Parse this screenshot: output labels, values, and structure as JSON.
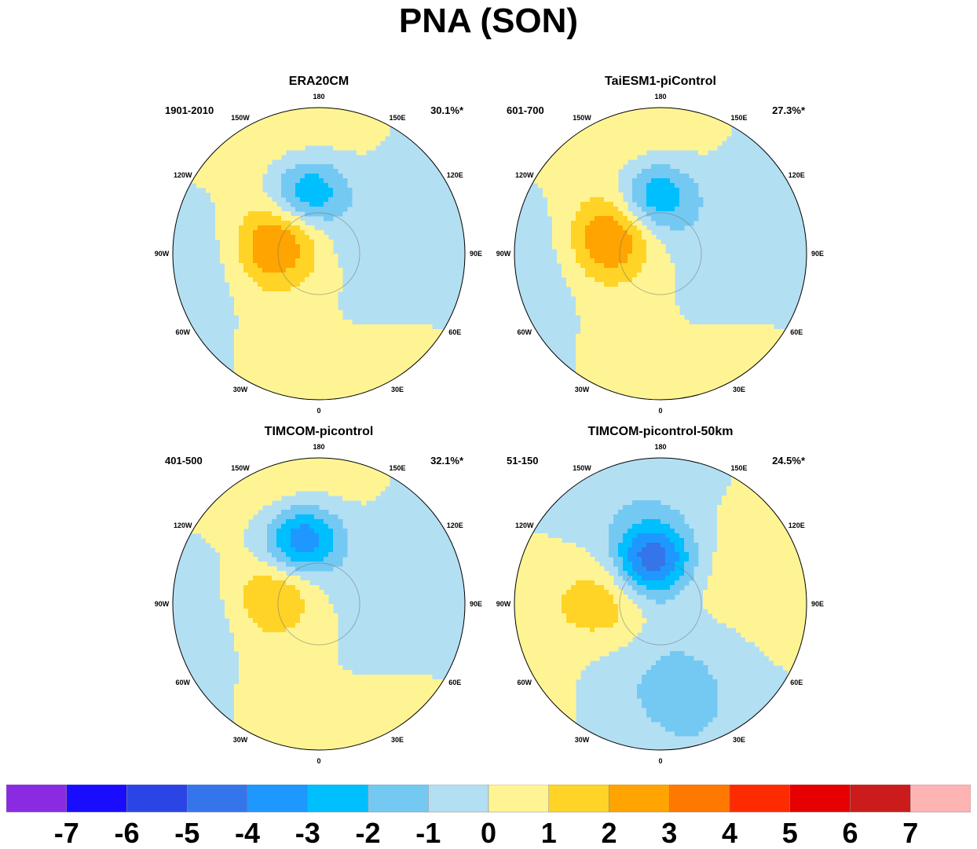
{
  "title": "PNA (SON)",
  "chart_data": [
    {
      "type": "heatmap",
      "title": "ERA20CM",
      "period": "1901-2010",
      "variance": "30.1%*",
      "features": {
        "low_center": {
          "lon": -170,
          "lat": 52,
          "min_level": -3
        },
        "high_center": {
          "lon": -100,
          "lat": 63,
          "max_level": 3
        },
        "second_high_sign": 1
      }
    },
    {
      "type": "heatmap",
      "title": "TaiESM1-piControl",
      "period": "601-700",
      "variance": "27.3%*",
      "features": {
        "low_center": {
          "lon": -175,
          "lat": 55,
          "min_level": -3
        },
        "high_center": {
          "lon": -105,
          "lat": 58,
          "max_level": 3
        },
        "second_high_sign": 1
      }
    },
    {
      "type": "heatmap",
      "title": "TIMCOM-picontrol",
      "period": "401-500",
      "variance": "32.1%*",
      "features": {
        "low_center": {
          "lon": -165,
          "lat": 50,
          "min_level": -4
        },
        "high_center": {
          "lon": -100,
          "lat": 62,
          "max_level": 2
        },
        "second_high_sign": 1
      }
    },
    {
      "type": "heatmap",
      "title": "TIMCOM-picontrol-50km",
      "period": "51-150",
      "variance": "24.5%*",
      "features": {
        "low_center": {
          "lon": -170,
          "lat": 62,
          "min_level": -4
        },
        "high_center": {
          "lon": -95,
          "lat": 55,
          "max_level": 1
        },
        "second_high_sign": -1
      }
    }
  ],
  "lon_labels": [
    "180",
    "150E",
    "120E",
    "90E",
    "60E",
    "30E",
    "0",
    "30W",
    "60W",
    "90W",
    "120W",
    "150W"
  ],
  "colorbar": {
    "tick_labels": [
      "-7",
      "-6",
      "-5",
      "-4",
      "-3",
      "-2",
      "-1",
      "0",
      "1",
      "2",
      "3",
      "4",
      "5",
      "6",
      "7"
    ],
    "colors": [
      "#8a2be2",
      "#1a0dff",
      "#2b44e6",
      "#3575eb",
      "#1e98ff",
      "#00bfff",
      "#74c9f2",
      "#b3dff3",
      "#fff494",
      "#ffd426",
      "#ffa400",
      "#ff7800",
      "#ff2b00",
      "#e60000",
      "#cc1b1b",
      "#ffb4b4"
    ]
  }
}
